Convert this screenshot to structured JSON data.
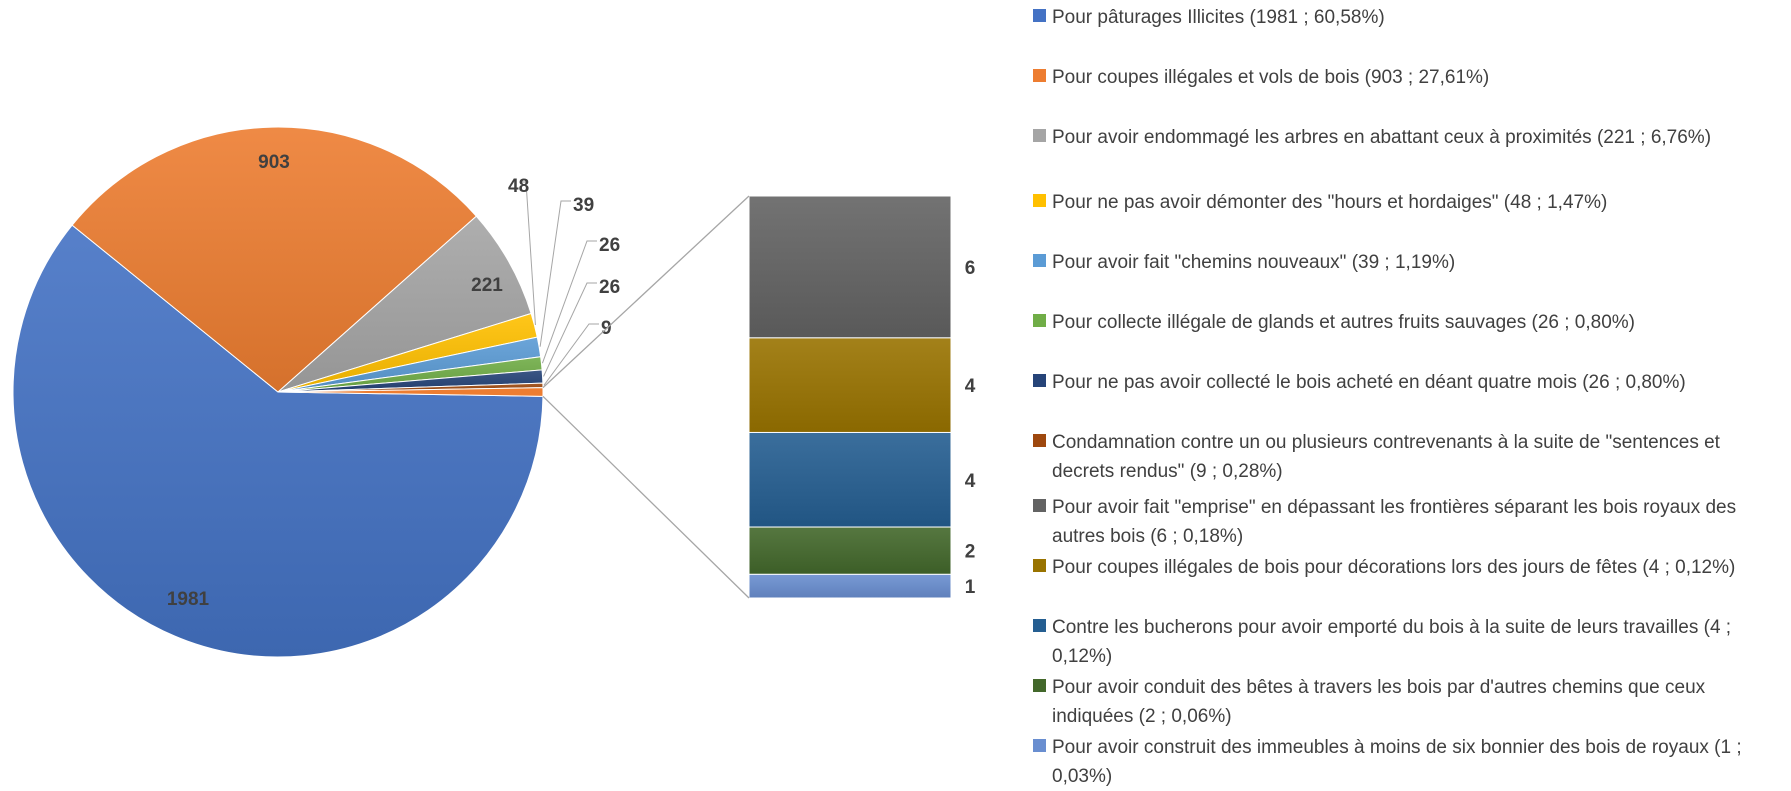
{
  "chart_data": {
    "type": "pie",
    "title": "",
    "slices": [
      {
        "label": "Pour pâturages Illicites (1981 ; 60,58%)",
        "data_label": "1981",
        "value": 1981,
        "color": "#4472C4"
      },
      {
        "label": "Pour coupes illégales et vols de bois (903 ; 27,61%)",
        "data_label": "903",
        "value": 903,
        "color": "#ED7D31"
      },
      {
        "label": "Pour avoir endommagé les arbres en abattant ceux à proximités (221 ; 6,76%)",
        "data_label": "221",
        "value": 221,
        "color": "#A5A5A5"
      },
      {
        "label": "Pour ne pas avoir démonter des \"hours et hordaiges\" (48 ; 1,47%)",
        "data_label": "48",
        "value": 48,
        "color": "#FFC000"
      },
      {
        "label": "Pour avoir fait \"chemins nouveaux\" (39 ; 1,19%)",
        "data_label": "39",
        "value": 39,
        "color": "#5B9BD5"
      },
      {
        "label": "Pour collecte illégale de glands et autres fruits sauvages (26 ; 0,80%)",
        "data_label": "26",
        "value": 26,
        "color": "#70AD47"
      },
      {
        "label": "Pour ne pas avoir collecté le bois acheté en déant quatre mois (26 ; 0,80%)",
        "data_label": "26",
        "value": 26,
        "color": "#264478"
      },
      {
        "label": "Condamnation contre un ou plusieurs contrevenants à la suite de \"sentences et decrets rendus\" (9 ; 0,28%)",
        "data_label": "9",
        "value": 9,
        "color": "#9E480E"
      },
      {
        "label": "Pour avoir fait \"emprise\" en dépassant les frontières séparant les bois royaux des autres bois (6 ; 0,18%)",
        "data_label": "6",
        "value": 6,
        "color": "#636363"
      },
      {
        "label": "Pour coupes illégales de bois pour décorations lors des jours de fêtes (4 ; 0,12%)",
        "data_label": "4",
        "value": 4,
        "color": "#997300"
      },
      {
        "label": "Contre les bucherons pour avoir emporté du bois à la suite de leurs travailles (4 ; 0,12%)",
        "data_label": "4",
        "value": 4,
        "color": "#255E91"
      },
      {
        "label": "Pour avoir conduit des bêtes à travers les bois par d'autres chemins que ceux indiquées (2 ; 0,06%)",
        "data_label": "2",
        "value": 2,
        "color": "#43682B"
      },
      {
        "label": "Pour avoir construit des immeubles à moins de six bonnier des bois de royaux (1 ; 0,03%)",
        "data_label": "1",
        "value": 1,
        "color": "#698ED0"
      }
    ],
    "pie_slice_count": 8,
    "bar_of_pie": {
      "stack_order_top_to_bottom": [
        8,
        9,
        10,
        11,
        12
      ]
    },
    "legend_position": "right"
  }
}
